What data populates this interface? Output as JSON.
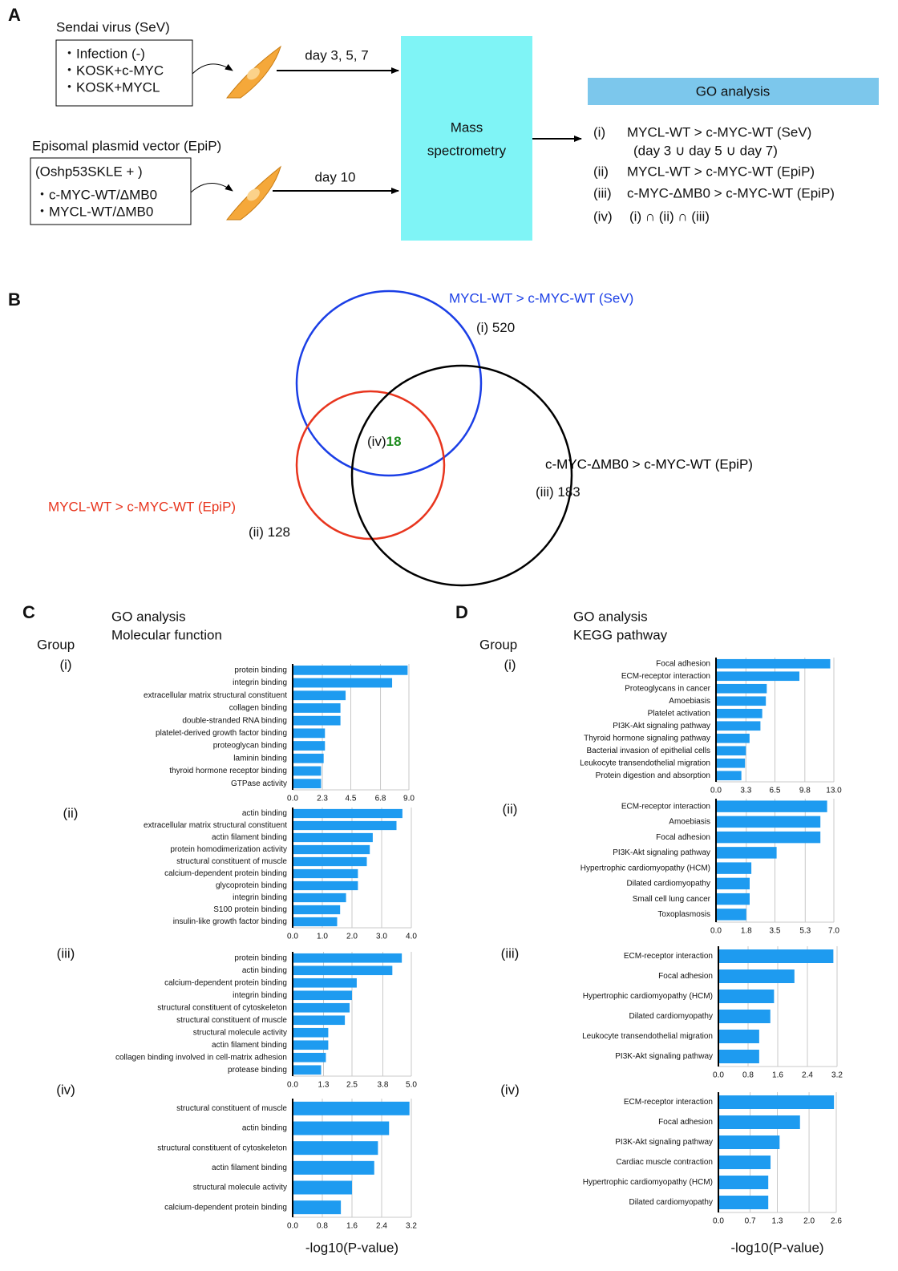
{
  "panel_a": {
    "letter": "A",
    "sev_title": "Sendai virus (SeV)",
    "sev_items": [
      "・Infection (-)",
      "・KOSK+c-MYC",
      "・KOSK+MYCL"
    ],
    "sev_arrow": "day 3, 5, 7",
    "epip_title": "Episomal plasmid vector (EpiP)",
    "epip_items": [
      "(Oshp53SKLE  + )",
      "・c-MYC-WT/ΔMB0",
      "・MYCL-WT/ΔMB0"
    ],
    "epip_arrow": "day 10",
    "mass_spec": [
      "Mass",
      "spectrometry"
    ],
    "go_header": "GO analysis",
    "go_lines": [
      {
        "num": "(i)",
        "text": "MYCL-WT > c-MYC-WT (SeV)",
        "note": "(day 3 ∪ day 5 ∪ day 7)"
      },
      {
        "num": "(ii)",
        "text": "MYCL-WT > c-MYC-WT (EpiP)"
      },
      {
        "num": "(iii)",
        "text": "c-MYC-ΔMB0 > c-MYC-WT (EpiP)"
      },
      {
        "num": "(iv)",
        "text": "(i) ∩ (ii) ∩ (iii)"
      }
    ]
  },
  "panel_b": {
    "letter": "B",
    "sets": [
      {
        "label": "MYCL-WT > c-MYC-WT (SeV)",
        "num": "(i)",
        "count": 520,
        "color": "#1b3fe6"
      },
      {
        "label": "MYCL-WT > c-MYC-WT (EpiP)",
        "num": "(ii)",
        "count": 128,
        "color": "#e8351e"
      },
      {
        "label": "c-MYC-ΔMB0 > c-MYC-WT (EpiP)",
        "num": "(iii)",
        "count": 183,
        "color": "#000000"
      }
    ],
    "intersection": {
      "num": "(iv)",
      "count": 18,
      "color": "#1e8c1e"
    }
  },
  "panel_c": {
    "letter": "C",
    "title": "GO analysis",
    "subtitle": "Molecular function",
    "group_header": "Group"
  },
  "panel_d": {
    "letter": "D",
    "title": "GO analysis",
    "subtitle": "KEGG pathway",
    "group_header": "Group"
  },
  "chart_data": [
    {
      "type": "bar",
      "orientation": "horizontal",
      "group": "(i)",
      "color": "#1e9bf0",
      "grid": true,
      "categories": [
        "protein binding",
        "integrin binding",
        "extracellular matrix structural constituent",
        "collagen binding",
        "double-stranded RNA binding",
        "platelet-derived growth factor binding",
        "proteoglycan binding",
        "laminin binding",
        "thyroid hormone receptor binding",
        "GTPase activity"
      ],
      "values": [
        8.9,
        7.7,
        4.1,
        3.7,
        3.7,
        2.5,
        2.5,
        2.4,
        2.2,
        2.2
      ],
      "xlim": [
        0,
        9
      ],
      "xticks": [
        {
          "value": 0,
          "label": "0.0"
        },
        2.3,
        4.5,
        6.8,
        {
          "value": 9,
          "label": "9.0"
        }
      ]
    },
    {
      "type": "bar",
      "orientation": "horizontal",
      "group": "(ii)",
      "color": "#1e9bf0",
      "grid": true,
      "categories": [
        "actin binding",
        "extracellular matrix structural constituent",
        "actin filament binding",
        "protein homodimerization activity",
        "structural constituent of muscle",
        "calcium-dependent protein binding",
        "glycoprotein binding",
        "integrin binding",
        "S100 protein binding",
        "insulin-like growth factor binding"
      ],
      "values": [
        3.7,
        3.5,
        2.7,
        2.6,
        2.5,
        2.2,
        2.2,
        1.8,
        1.6,
        1.5
      ],
      "xlim": [
        0,
        4
      ],
      "xticks": [
        {
          "value": 0,
          "label": "0.0"
        },
        {
          "value": 1,
          "label": "1.0"
        },
        {
          "value": 2,
          "label": "2.0"
        },
        {
          "value": 3,
          "label": "3.0"
        },
        {
          "value": 4,
          "label": "4.0"
        }
      ]
    },
    {
      "type": "bar",
      "orientation": "horizontal",
      "group": "(iii)",
      "color": "#1e9bf0",
      "grid": true,
      "categories": [
        "protein binding",
        "actin binding",
        "calcium-dependent protein binding",
        "integrin binding",
        "structural constituent of cytoskeleton",
        "structural constituent of muscle",
        "structural molecule activity",
        "actin filament binding",
        "collagen binding involved in cell-matrix adhesion",
        "protease binding"
      ],
      "values": [
        4.6,
        4.2,
        2.7,
        2.5,
        2.4,
        2.2,
        1.5,
        1.5,
        1.4,
        1.2
      ],
      "xlim": [
        0,
        5
      ],
      "xticks": [
        {
          "value": 0,
          "label": "0.0"
        },
        1.3,
        2.5,
        3.8,
        {
          "value": 5,
          "label": "5.0"
        }
      ]
    },
    {
      "type": "bar",
      "orientation": "horizontal",
      "group": "(iv)",
      "color": "#1e9bf0",
      "grid": true,
      "categories": [
        "structural constituent of muscle",
        "actin binding",
        "structural constituent of cytoskeleton",
        "actin filament binding",
        "structural molecule activity",
        "calcium-dependent protein binding"
      ],
      "values": [
        3.15,
        2.6,
        2.3,
        2.2,
        1.6,
        1.3
      ],
      "xlim": [
        0,
        3.2
      ],
      "xticks": [
        {
          "value": 0,
          "label": "0.0"
        },
        0.8,
        1.6,
        2.4,
        3.2
      ],
      "xlabel": "-log10(P-value)"
    },
    {
      "type": "bar",
      "orientation": "horizontal",
      "group": "(i)",
      "color": "#1e9bf0",
      "grid": true,
      "categories": [
        "Focal adhesion",
        "ECM-receptor interaction",
        "Proteoglycans in cancer",
        "Amoebiasis",
        "Platelet activation",
        "PI3K-Akt signaling pathway",
        "Thyroid hormone signaling pathway",
        "Bacterial invasion of epithelial cells",
        "Leukocyte transendothelial migration",
        "Protein digestion and absorption"
      ],
      "values": [
        12.6,
        9.2,
        5.6,
        5.5,
        5.1,
        4.9,
        3.7,
        3.3,
        3.2,
        2.8
      ],
      "xlim": [
        0,
        13
      ],
      "xticks": [
        {
          "value": 0,
          "label": "0.0"
        },
        3.3,
        6.5,
        9.8,
        {
          "value": 13,
          "label": "13.0"
        }
      ]
    },
    {
      "type": "bar",
      "orientation": "horizontal",
      "group": "(ii)",
      "color": "#1e9bf0",
      "grid": true,
      "categories": [
        "ECM-receptor interaction",
        "Amoebiasis",
        "Focal adhesion",
        "PI3K-Akt signaling pathway",
        "Hypertrophic cardiomyopathy (HCM)",
        "Dilated cardiomyopathy",
        "Small cell lung cancer",
        "Toxoplasmosis"
      ],
      "values": [
        6.6,
        6.2,
        6.2,
        3.6,
        2.1,
        2.0,
        2.0,
        1.8
      ],
      "xlim": [
        0,
        7
      ],
      "xticks": [
        {
          "value": 0,
          "label": "0.0"
        },
        1.8,
        3.5,
        5.3,
        {
          "value": 7,
          "label": "7.0"
        }
      ]
    },
    {
      "type": "bar",
      "orientation": "horizontal",
      "group": "(iii)",
      "color": "#1e9bf0",
      "grid": true,
      "categories": [
        "ECM-receptor interaction",
        "Focal adhesion",
        "Hypertrophic cardiomyopathy (HCM)",
        "Dilated cardiomyopathy",
        "Leukocyte transendothelial migration",
        "PI3K-Akt signaling pathway"
      ],
      "values": [
        3.1,
        2.05,
        1.5,
        1.4,
        1.1,
        1.1
      ],
      "xlim": [
        0,
        3.2
      ],
      "xticks": [
        {
          "value": 0,
          "label": "0.0"
        },
        0.8,
        1.6,
        2.4,
        3.2
      ]
    },
    {
      "type": "bar",
      "orientation": "horizontal",
      "group": "(iv)",
      "color": "#1e9bf0",
      "grid": true,
      "categories": [
        "ECM-receptor interaction",
        "Focal adhesion",
        "PI3K-Akt signaling pathway",
        "Cardiac muscle contraction",
        "Hypertrophic cardiomyopathy (HCM)",
        "Dilated cardiomyopathy"
      ],
      "values": [
        2.55,
        1.8,
        1.35,
        1.15,
        1.1,
        1.1
      ],
      "xlim": [
        0,
        2.6
      ],
      "xticks": [
        {
          "value": 0,
          "label": "0.0"
        },
        0.7,
        1.3,
        {
          "value": 2,
          "label": "2.0"
        },
        2.6
      ],
      "xlabel": "-log10(P-value)"
    }
  ]
}
